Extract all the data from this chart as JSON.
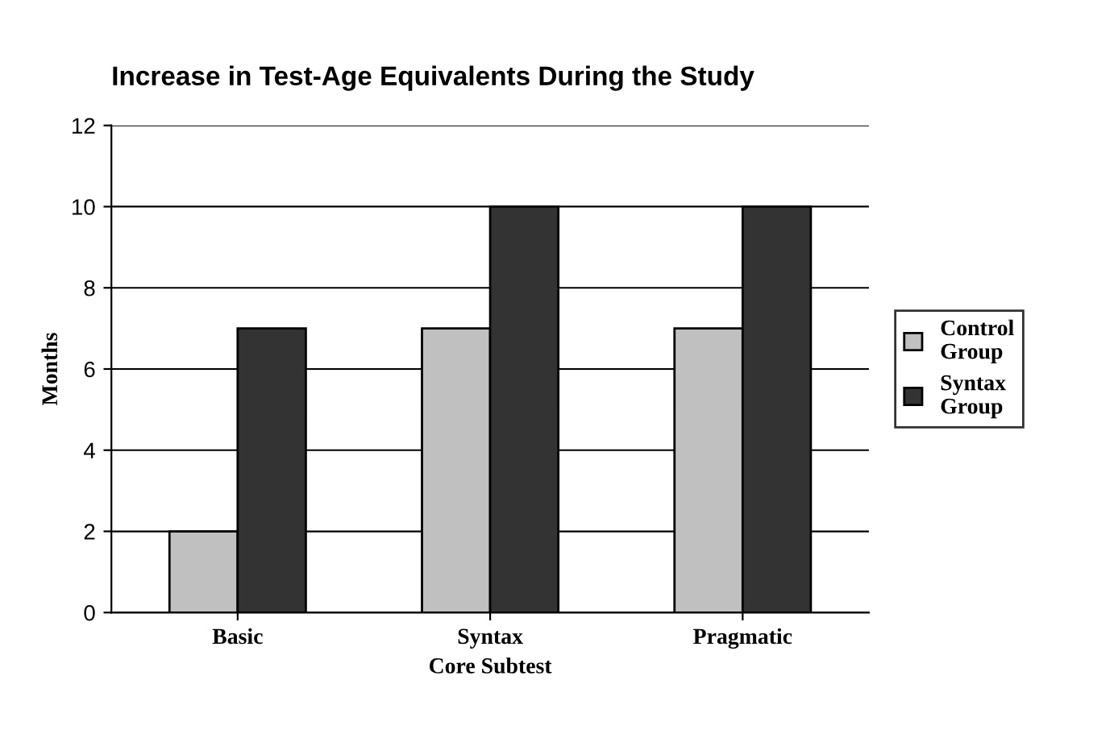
{
  "chart_data": {
    "type": "bar",
    "title": "Increase in Test-Age Equivalents During the Study",
    "xlabel": "Core Subtest",
    "ylabel": "Months",
    "categories": [
      "Basic",
      "Syntax",
      "Pragmatic"
    ],
    "series": [
      {
        "name": "Control Group",
        "color": "#c0c0c0",
        "values": [
          2,
          7,
          7
        ]
      },
      {
        "name": "Syntax Group",
        "color": "#333333",
        "values": [
          7,
          10,
          10
        ]
      }
    ],
    "ylim": [
      0,
      12
    ],
    "yticks": [
      0,
      2,
      4,
      6,
      8,
      10,
      12
    ],
    "grid": "y",
    "legend": "right"
  }
}
